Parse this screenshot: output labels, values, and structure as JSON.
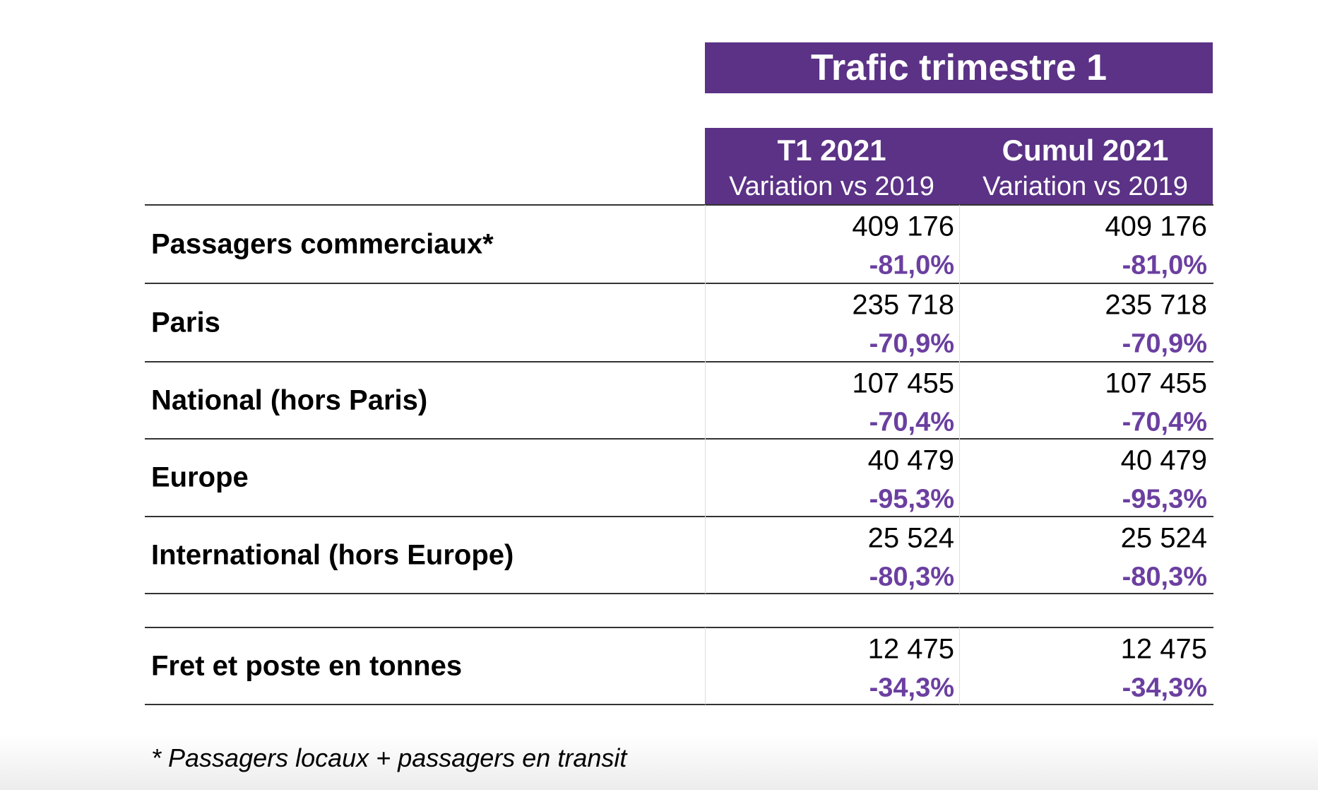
{
  "header": {
    "title": "Trafic trimestre 1"
  },
  "table": {
    "columns": [
      {
        "title": "T1 2021",
        "subtitle": "Variation vs 2019"
      },
      {
        "title": "Cumul 2021",
        "subtitle": "Variation vs 2019"
      }
    ],
    "rows": [
      {
        "label": "Passagers commerciaux*",
        "cells": [
          {
            "value": "409 176",
            "variation": "-81,0%"
          },
          {
            "value": "409 176",
            "variation": "-81,0%"
          }
        ]
      },
      {
        "label": "Paris",
        "cells": [
          {
            "value": "235 718",
            "variation": "-70,9%"
          },
          {
            "value": "235 718",
            "variation": "-70,9%"
          }
        ]
      },
      {
        "label": "National (hors Paris)",
        "cells": [
          {
            "value": "107 455",
            "variation": "-70,4%"
          },
          {
            "value": "107 455",
            "variation": "-70,4%"
          }
        ]
      },
      {
        "label": "Europe",
        "cells": [
          {
            "value": "40 479",
            "variation": "-95,3%"
          },
          {
            "value": "40 479",
            "variation": "-95,3%"
          }
        ]
      },
      {
        "label": "International (hors Europe)",
        "cells": [
          {
            "value": "25 524",
            "variation": "-80,3%"
          },
          {
            "value": "25 524",
            "variation": "-80,3%"
          }
        ]
      },
      {
        "label": "Fret et poste en tonnes",
        "cells": [
          {
            "value": "12 475",
            "variation": "-34,3%"
          },
          {
            "value": "12 475",
            "variation": "-34,3%"
          }
        ]
      }
    ]
  },
  "footnote": "* Passagers locaux + passagers en transit"
}
